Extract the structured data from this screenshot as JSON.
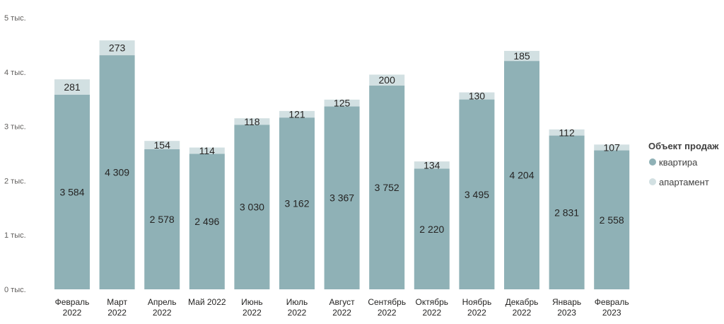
{
  "chart_data": {
    "type": "bar",
    "stacked": true,
    "categories": [
      [
        "Февраль",
        "2022"
      ],
      [
        "Март",
        "2022"
      ],
      [
        "Апрель",
        "2022"
      ],
      [
        "Май 2022"
      ],
      [
        "Июнь",
        "2022"
      ],
      [
        "Июль",
        "2022"
      ],
      [
        "Август",
        "2022"
      ],
      [
        "Сентябрь",
        "2022"
      ],
      [
        "Октябрь",
        "2022"
      ],
      [
        "Ноябрь",
        "2022"
      ],
      [
        "Декабрь",
        "2022"
      ],
      [
        "Январь",
        "2023"
      ],
      [
        "Февраль",
        "2023"
      ]
    ],
    "series": [
      {
        "name": "квартира",
        "color": "#8fb1b6",
        "values": [
          3584,
          4309,
          2578,
          2496,
          3030,
          3162,
          3367,
          3752,
          2220,
          3495,
          4204,
          2831,
          2558
        ],
        "labels": [
          "3 584",
          "4 309",
          "2 578",
          "2 496",
          "3 030",
          "3 162",
          "3 367",
          "3 752",
          "2 220",
          "3 495",
          "4 204",
          "2 831",
          "2 558"
        ]
      },
      {
        "name": "апартамент",
        "color": "#d2e0e2",
        "values": [
          281,
          273,
          154,
          114,
          118,
          121,
          125,
          200,
          134,
          130,
          185,
          112,
          107
        ],
        "labels": [
          "281",
          "273",
          "154",
          "114",
          "118",
          "121",
          "125",
          "200",
          "134",
          "130",
          "185",
          "112",
          "107"
        ]
      }
    ],
    "ylim": [
      0,
      5000
    ],
    "yticks": [
      0,
      1000,
      2000,
      3000,
      4000,
      5000
    ],
    "ytick_labels": [
      "0 тыс.",
      "1 тыс.",
      "2 тыс.",
      "3 тыс.",
      "4 тыс.",
      "5 тыс."
    ],
    "legend": {
      "title": "Объект продаж",
      "position": "right"
    },
    "title": "",
    "xlabel": "",
    "ylabel": ""
  }
}
